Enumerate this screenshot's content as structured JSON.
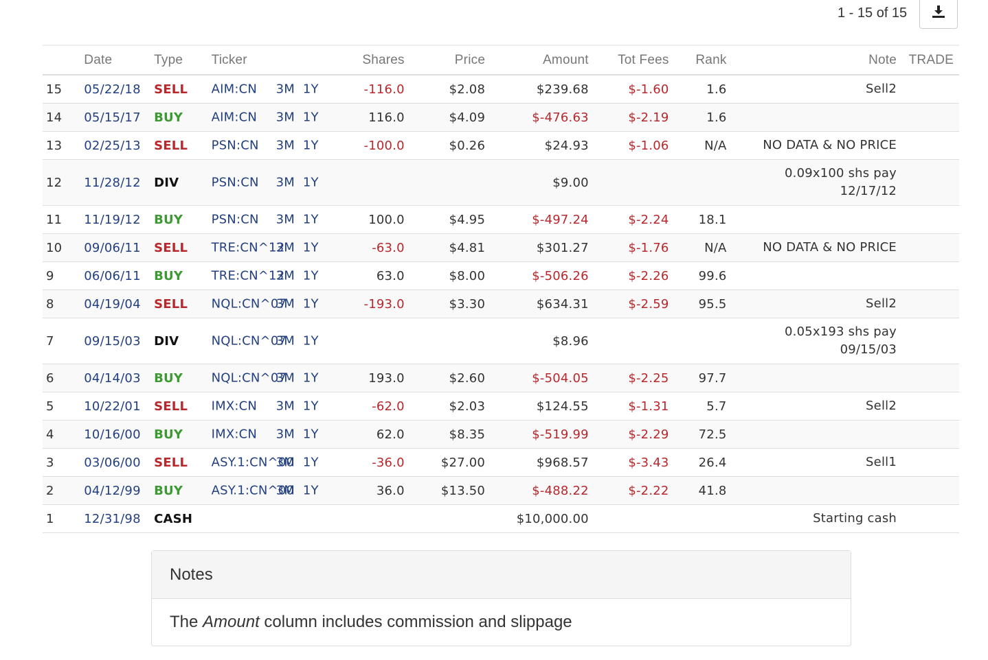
{
  "pager": {
    "text": "1 - 15 of 15"
  },
  "download_icon": "download-icon",
  "columns": {
    "idx": "",
    "date": "Date",
    "type": "Type",
    "ticker": "Ticker",
    "shares": "Shares",
    "price": "Price",
    "amount": "Amount",
    "fees": "Tot Fees",
    "rank": "Rank",
    "note": "Note",
    "trade": "TRADE"
  },
  "rows": [
    {
      "idx": "15",
      "date": "05/22/18",
      "type": "SELL",
      "ticker": "AIM:CN",
      "links": "3M 1Y",
      "shares": "-116.0",
      "price": "$2.08",
      "amount": "$239.68",
      "fees": "$-1.60",
      "rank": "1.6",
      "note": "Sell2"
    },
    {
      "idx": "14",
      "date": "05/15/17",
      "type": "BUY",
      "ticker": "AIM:CN",
      "links": "3M 1Y",
      "shares": "116.0",
      "price": "$4.09",
      "amount": "$-476.63",
      "fees": "$-2.19",
      "rank": "1.6",
      "note": ""
    },
    {
      "idx": "13",
      "date": "02/25/13",
      "type": "SELL",
      "ticker": "PSN:CN",
      "links": "3M 1Y",
      "shares": "-100.0",
      "price": "$0.26",
      "amount": "$24.93",
      "fees": "$-1.06",
      "rank": "N/A",
      "note": "NO DATA & NO PRICE"
    },
    {
      "idx": "12",
      "date": "11/28/12",
      "type": "DIV",
      "ticker": "PSN:CN",
      "links": "3M 1Y",
      "shares": "",
      "price": "",
      "amount": "$9.00",
      "fees": "",
      "rank": "",
      "note": "0.09x100 shs pay 12/17/12"
    },
    {
      "idx": "11",
      "date": "11/19/12",
      "type": "BUY",
      "ticker": "PSN:CN",
      "links": "3M 1Y",
      "shares": "100.0",
      "price": "$4.95",
      "amount": "$-497.24",
      "fees": "$-2.24",
      "rank": "18.1",
      "note": ""
    },
    {
      "idx": "10",
      "date": "09/06/11",
      "type": "SELL",
      "ticker": "TRE:CN^12",
      "links": "3M 1Y",
      "shares": "-63.0",
      "price": "$4.81",
      "amount": "$301.27",
      "fees": "$-1.76",
      "rank": "N/A",
      "note": "NO DATA & NO PRICE"
    },
    {
      "idx": "9",
      "date": "06/06/11",
      "type": "BUY",
      "ticker": "TRE:CN^12",
      "links": "3M 1Y",
      "shares": "63.0",
      "price": "$8.00",
      "amount": "$-506.26",
      "fees": "$-2.26",
      "rank": "99.6",
      "note": ""
    },
    {
      "idx": "8",
      "date": "04/19/04",
      "type": "SELL",
      "ticker": "NQL:CN^07",
      "links": "3M 1Y",
      "shares": "-193.0",
      "price": "$3.30",
      "amount": "$634.31",
      "fees": "$-2.59",
      "rank": "95.5",
      "note": "Sell2"
    },
    {
      "idx": "7",
      "date": "09/15/03",
      "type": "DIV",
      "ticker": "NQL:CN^07",
      "links": "3M 1Y",
      "shares": "",
      "price": "",
      "amount": "$8.96",
      "fees": "",
      "rank": "",
      "note": "0.05x193 shs pay 09/15/03"
    },
    {
      "idx": "6",
      "date": "04/14/03",
      "type": "BUY",
      "ticker": "NQL:CN^07",
      "links": "3M 1Y",
      "shares": "193.0",
      "price": "$2.60",
      "amount": "$-504.05",
      "fees": "$-2.25",
      "rank": "97.7",
      "note": ""
    },
    {
      "idx": "5",
      "date": "10/22/01",
      "type": "SELL",
      "ticker": "IMX:CN",
      "links": "3M 1Y",
      "shares": "-62.0",
      "price": "$2.03",
      "amount": "$124.55",
      "fees": "$-1.31",
      "rank": "5.7",
      "note": "Sell2"
    },
    {
      "idx": "4",
      "date": "10/16/00",
      "type": "BUY",
      "ticker": "IMX:CN",
      "links": "3M 1Y",
      "shares": "62.0",
      "price": "$8.35",
      "amount": "$-519.99",
      "fees": "$-2.29",
      "rank": "72.5",
      "note": ""
    },
    {
      "idx": "3",
      "date": "03/06/00",
      "type": "SELL",
      "ticker": "ASY.1:CN^00",
      "links": "3M 1Y",
      "shares": "-36.0",
      "price": "$27.00",
      "amount": "$968.57",
      "fees": "$-3.43",
      "rank": "26.4",
      "note": "Sell1"
    },
    {
      "idx": "2",
      "date": "04/12/99",
      "type": "BUY",
      "ticker": "ASY.1:CN^00",
      "links": "3M 1Y",
      "shares": "36.0",
      "price": "$13.50",
      "amount": "$-488.22",
      "fees": "$-2.22",
      "rank": "41.8",
      "note": ""
    },
    {
      "idx": "1",
      "date": "12/31/98",
      "type": "CASH",
      "ticker": "",
      "links": "",
      "shares": "",
      "price": "",
      "amount": "$10,000.00",
      "fees": "",
      "rank": "",
      "note": "Starting cash"
    }
  ],
  "notes": {
    "title": "Notes",
    "body_prefix": "The ",
    "body_emph": "Amount",
    "body_suffix": " column includes commission and slippage"
  },
  "colors": {
    "link_blue": "#223f80",
    "negative_red": "#b8272b",
    "buy_green": "#3d9a32"
  }
}
